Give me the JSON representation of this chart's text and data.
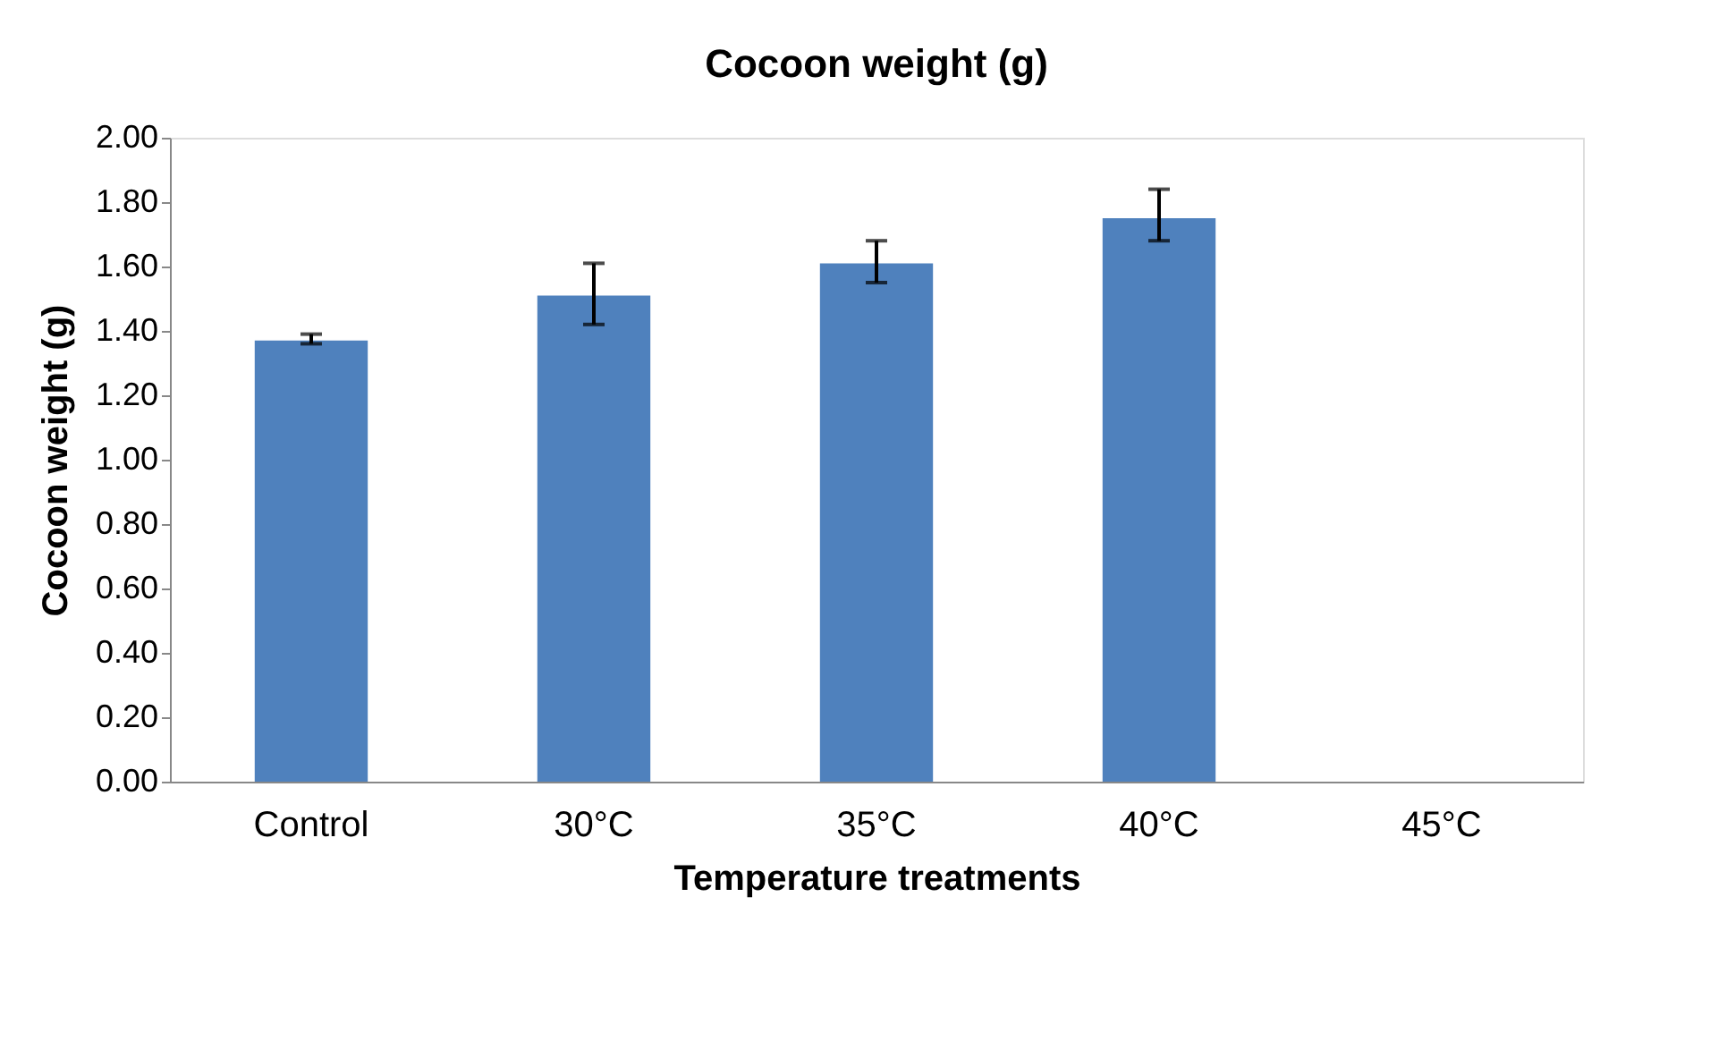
{
  "chart_data": {
    "type": "bar",
    "title": "Cocoon weight (g)",
    "xlabel": "Temperature treatments",
    "ylabel": "Cocoon weight (g)",
    "categories": [
      "Control",
      "30°C",
      "35°C",
      "40°C",
      "45°C"
    ],
    "values": [
      1.37,
      1.51,
      1.61,
      1.75,
      0
    ],
    "errors": [
      [
        1.36,
        1.39
      ],
      [
        1.42,
        1.61
      ],
      [
        1.55,
        1.68
      ],
      [
        1.68,
        1.84
      ],
      null
    ],
    "color": "#4f81bd",
    "ylim": [
      0,
      2
    ],
    "yticks": [
      {
        "value": 0,
        "label": "0.00"
      },
      {
        "value": 0.2,
        "label": "0.20"
      },
      {
        "value": 0.4,
        "label": "0.40"
      },
      {
        "value": 0.6,
        "label": "0.60"
      },
      {
        "value": 0.8,
        "label": "0.80"
      },
      {
        "value": 1,
        "label": "1.00"
      },
      {
        "value": 1.2,
        "label": "1.20"
      },
      {
        "value": 1.4,
        "label": "1.40"
      },
      {
        "value": 1.6,
        "label": "1.60"
      },
      {
        "value": 1.8,
        "label": "1.80"
      },
      {
        "value": 2,
        "label": "2.00"
      }
    ],
    "grid": false
  }
}
